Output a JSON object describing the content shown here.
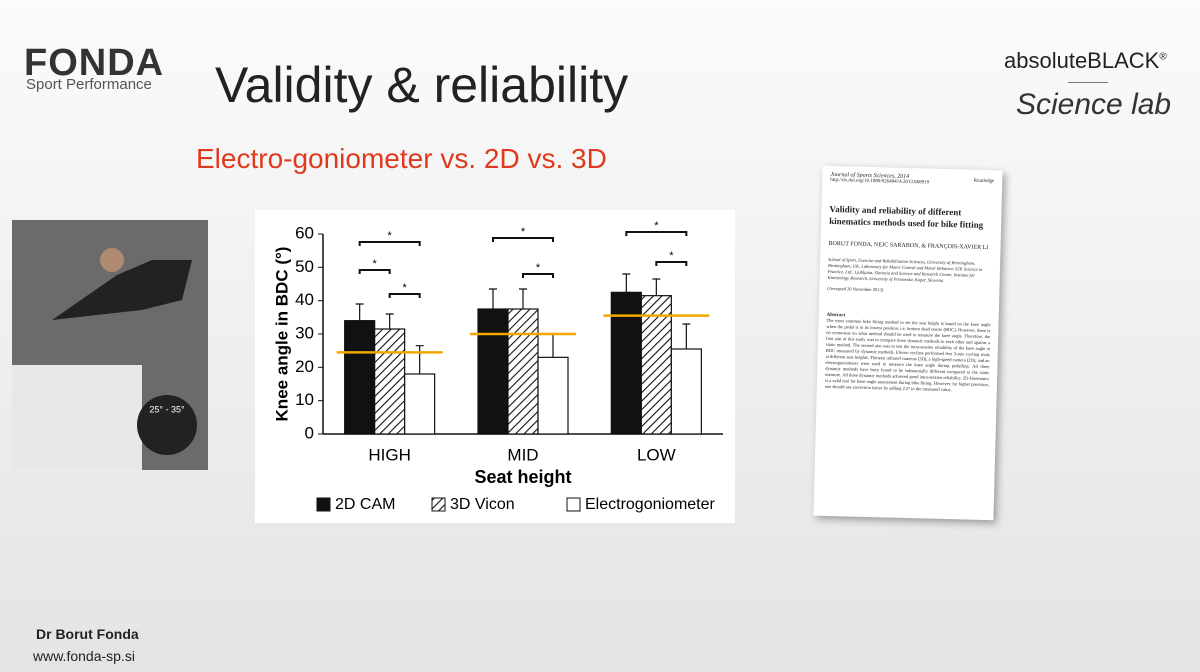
{
  "slide": {
    "logo_main": "FONDA",
    "logo_sub": "Sport Performance",
    "title": "Validity & reliability",
    "subtitle": "Electro-goniometer vs. 2D vs. 3D",
    "photo_label": "25° - 35°",
    "brand": "absoluteBLACK",
    "brand_mark": "®",
    "lab": "Science lab",
    "author": "Dr Borut Fonda",
    "website": "www.fonda-sp.si"
  },
  "paper": {
    "journal": "Journal of Sports Sciences, 2014",
    "doi": "http://dx.doi.org/10.1080/02640414.2013.868919",
    "publisher": "Routledge",
    "title": "Validity and reliability of different kinematics methods used for bike fitting",
    "authors": "BORUT FONDA, NEJC SARABON, & FRANÇOIS-XAVIER LI",
    "affiliation": "School of Sport, Exercise and Rehabilitation Sciences, University of Birmingham, Birmingham, UK, Laboratory for Motor Control and Motor Behavior, S2P, Science to Practice, Ltd., Ljubljana, Slovenia and Science and Research Centre, Institute for Kinesiology Research, University of Primorska, Koper, Slovenia",
    "accepted": "(Accepted 20 November 2013)",
    "abstract_heading": "Abstract",
    "abstract": "The most common bike fitting method to set the seat height is based on the knee angle when the pedal is in its lowest position, i.e. bottom dead centre (BDC). However, there is no consensus on what method should be used to measure the knee angle. Therefore, the first aim of this study was to compare three dynamic methods to each other and against a static method. The second aim was to test the intra-session reliability of the knee angle at BDC measured by dynamic methods. Eleven cyclists performed five 3-min cycling trials at different seat heights. Thirteen infrared cameras (3D), a high-speed camera (2D), and an electrogoniometer were used to measure the knee angle during pedalling. All three dynamic methods have been found to be substantially different compared to the static measure. All three dynamic methods achieved good intra-session reliability. 2D kinematics is a valid tool for knee angle assessment during bike fitting. However, for higher precision, one should use correction factor by adding 2.2° to the measured value."
  },
  "chart_data": {
    "type": "bar",
    "y_label": "Knee angle in BDC (°)",
    "x_label": "Seat height",
    "categories": [
      "HIGH",
      "MID",
      "LOW"
    ],
    "series": [
      {
        "name": "2D CAM",
        "color": "#111111",
        "pattern": "solid",
        "values": [
          34,
          37.5,
          42.5
        ],
        "errors": [
          5,
          6,
          5.5
        ]
      },
      {
        "name": "3D Vicon",
        "color": "#111111",
        "pattern": "hatch",
        "values": [
          31.5,
          37.5,
          41.5
        ],
        "errors": [
          4.5,
          6,
          5
        ]
      },
      {
        "name": "Electrogoniometer",
        "color": "#ffffff",
        "pattern": "solid",
        "values": [
          18,
          23,
          25.5
        ],
        "errors": [
          8.5,
          7,
          7.5
        ]
      }
    ],
    "reference_values": [
      24.5,
      30,
      35.5
    ],
    "reference_color": "#f0a800",
    "significance_marks": [
      [
        "*",
        "*",
        "*"
      ],
      [
        "*",
        "*"
      ],
      [
        "*",
        "*"
      ]
    ],
    "ylim": [
      0,
      60
    ],
    "yticks": [
      0,
      10,
      20,
      30,
      40,
      50,
      60
    ],
    "grid": false,
    "legend": "bottom"
  }
}
